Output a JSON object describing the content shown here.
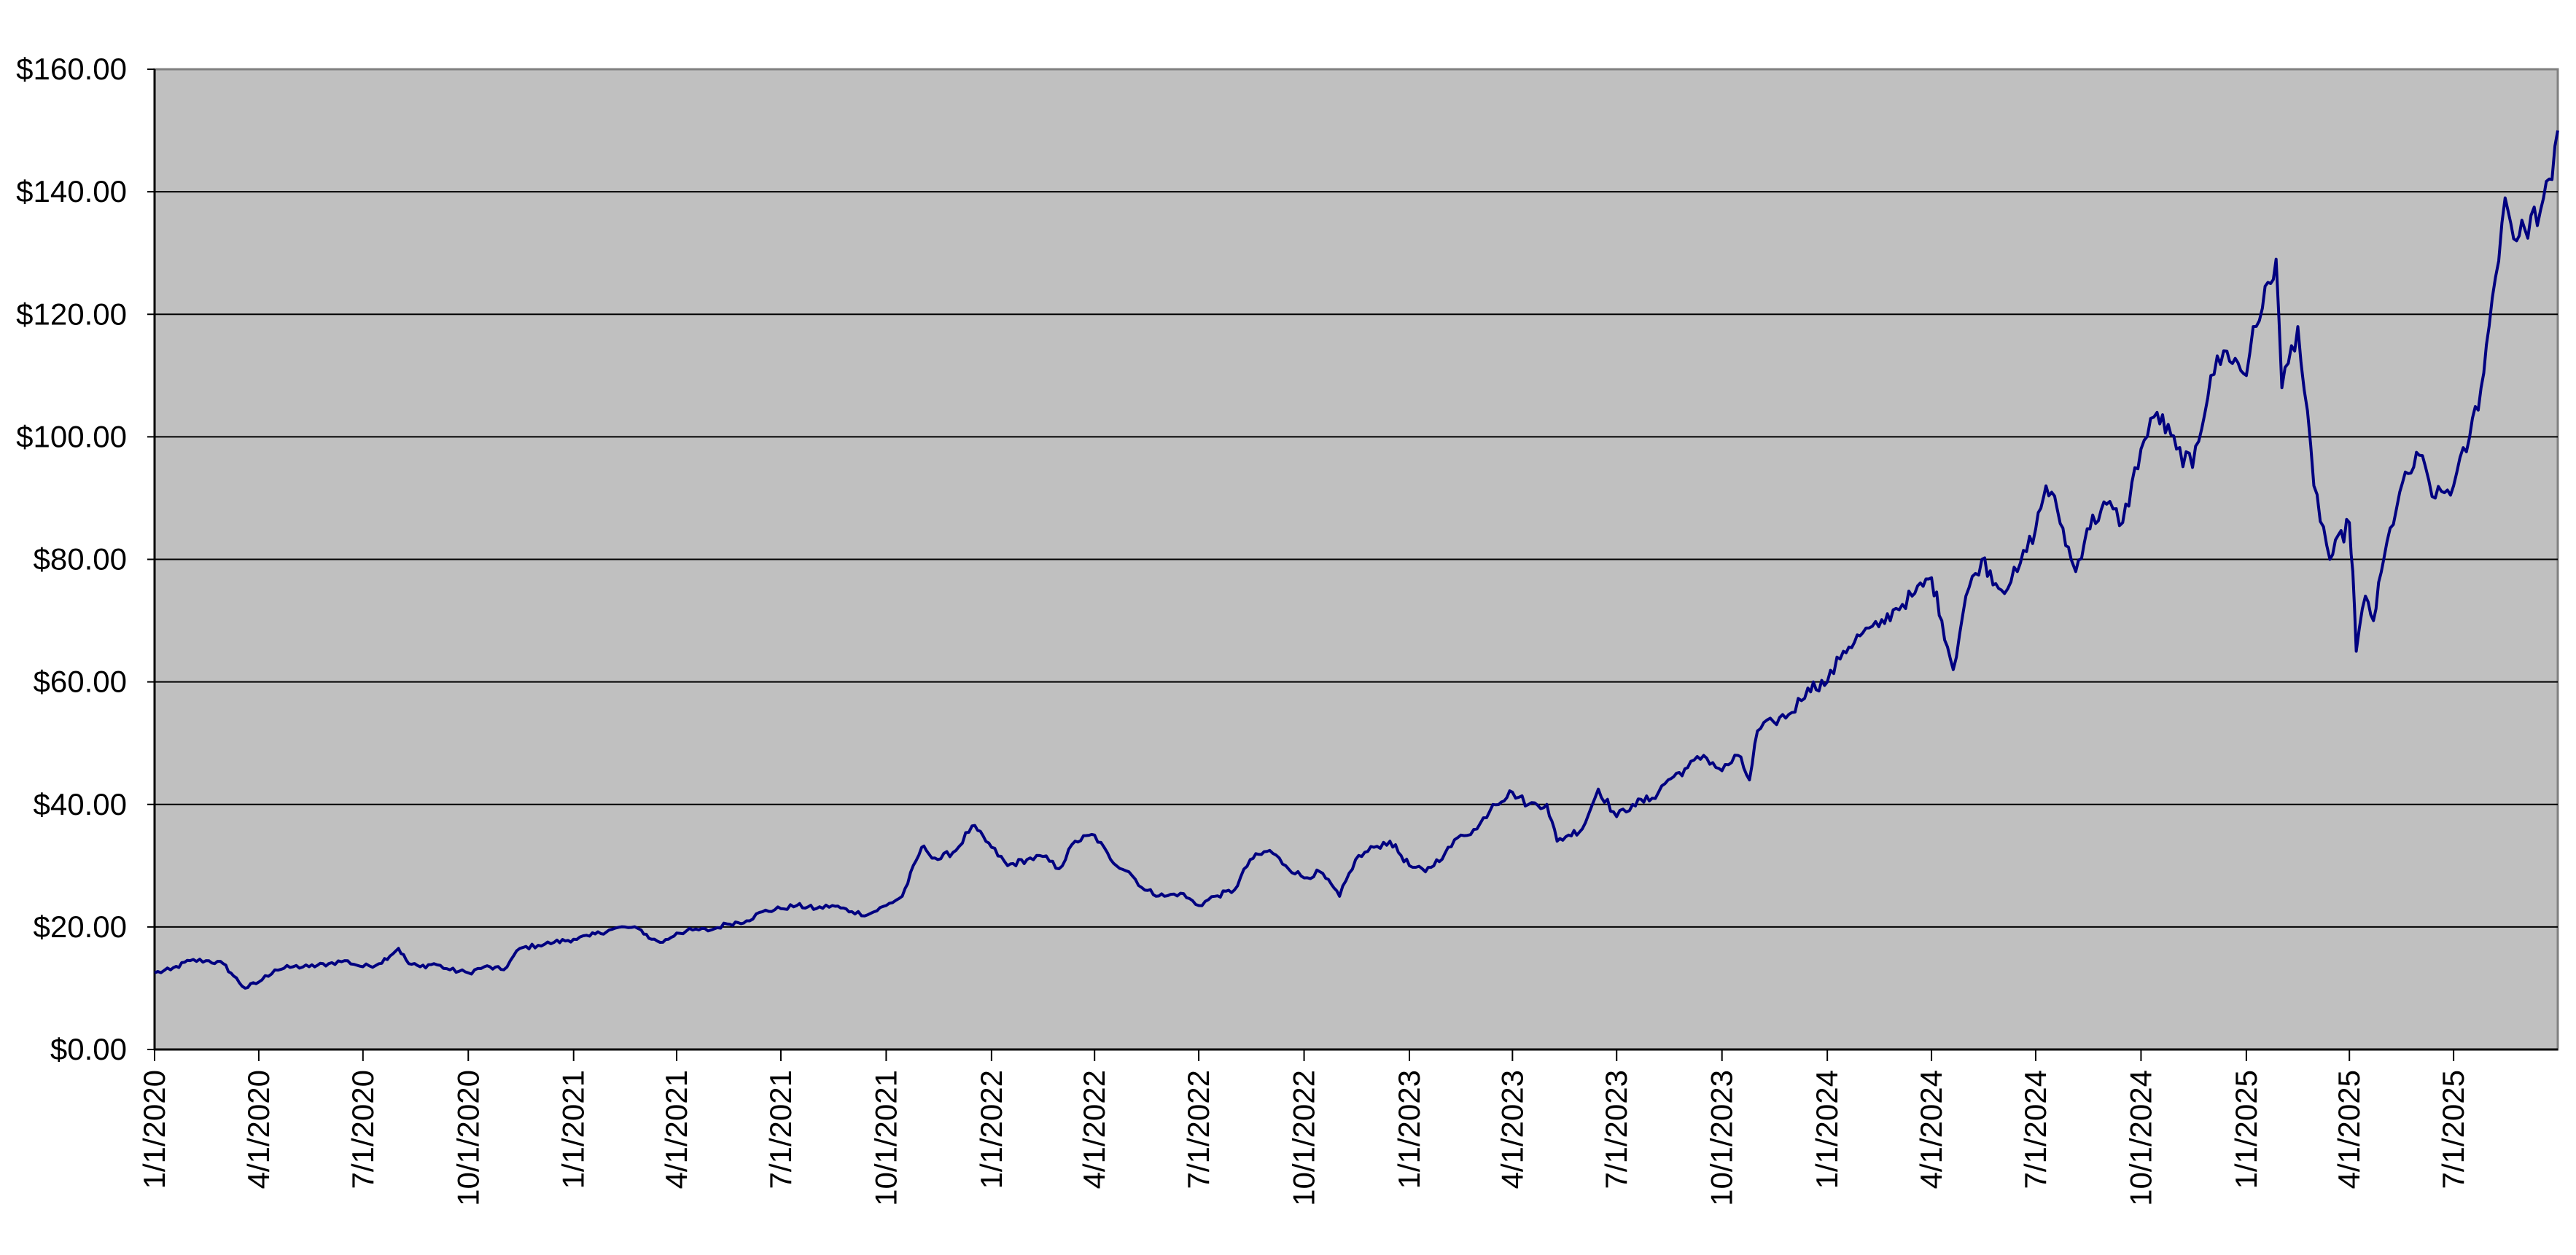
{
  "chart_data": {
    "type": "line",
    "title": "",
    "xlabel": "",
    "ylabel": "",
    "ylim": [
      0,
      160
    ],
    "xlim": [
      "2020-01-01",
      "2025-09-30"
    ],
    "grid": true,
    "legend": "none",
    "colors": {
      "plot_background": "#c0c0c0",
      "line": "#000080",
      "gridline": "#000000",
      "page_background": "#ffffff"
    },
    "y_ticks": [
      {
        "value": 0,
        "label": "$0.00"
      },
      {
        "value": 20,
        "label": "$20.00"
      },
      {
        "value": 40,
        "label": "$40.00"
      },
      {
        "value": 60,
        "label": "$60.00"
      },
      {
        "value": 80,
        "label": "$80.00"
      },
      {
        "value": 100,
        "label": "$100.00"
      },
      {
        "value": 120,
        "label": "$120.00"
      },
      {
        "value": 140,
        "label": "$140.00"
      },
      {
        "value": 160,
        "label": "$160.00"
      }
    ],
    "x_ticks": [
      {
        "value": "2020-01-01",
        "label": "1/1/2020"
      },
      {
        "value": "2020-04-01",
        "label": "4/1/2020"
      },
      {
        "value": "2020-07-01",
        "label": "7/1/2020"
      },
      {
        "value": "2020-10-01",
        "label": "10/1/2020"
      },
      {
        "value": "2021-01-01",
        "label": "1/1/2021"
      },
      {
        "value": "2021-04-01",
        "label": "4/1/2021"
      },
      {
        "value": "2021-07-01",
        "label": "7/1/2021"
      },
      {
        "value": "2021-10-01",
        "label": "10/1/2021"
      },
      {
        "value": "2022-01-01",
        "label": "1/1/2022"
      },
      {
        "value": "2022-04-01",
        "label": "4/1/2022"
      },
      {
        "value": "2022-07-01",
        "label": "7/1/2022"
      },
      {
        "value": "2022-10-01",
        "label": "10/1/2022"
      },
      {
        "value": "2023-01-01",
        "label": "1/1/2023"
      },
      {
        "value": "2023-04-01",
        "label": "4/1/2023"
      },
      {
        "value": "2023-07-01",
        "label": "7/1/2023"
      },
      {
        "value": "2023-10-01",
        "label": "10/1/2023"
      },
      {
        "value": "2024-01-01",
        "label": "1/1/2024"
      },
      {
        "value": "2024-04-01",
        "label": "4/1/2024"
      },
      {
        "value": "2024-07-01",
        "label": "7/1/2024"
      },
      {
        "value": "2024-10-01",
        "label": "10/1/2024"
      },
      {
        "value": "2025-01-01",
        "label": "1/1/2025"
      },
      {
        "value": "2025-04-01",
        "label": "4/1/2025"
      },
      {
        "value": "2025-07-01",
        "label": "7/1/2025"
      }
    ],
    "series": [
      {
        "x": [
          "2020-01-01",
          "2020-01-15",
          "2020-02-01",
          "2020-02-15",
          "2020-03-01",
          "2020-03-10",
          "2020-03-20",
          "2020-04-01",
          "2020-04-15",
          "2020-05-01",
          "2020-05-15",
          "2020-06-01",
          "2020-06-15",
          "2020-07-01",
          "2020-07-15",
          "2020-08-01",
          "2020-08-10",
          "2020-08-20",
          "2020-09-01",
          "2020-09-15",
          "2020-10-01",
          "2020-10-15",
          "2020-11-01",
          "2020-11-15",
          "2020-12-01",
          "2020-12-15",
          "2021-01-01",
          "2021-01-15",
          "2021-02-01",
          "2021-02-15",
          "2021-03-01",
          "2021-03-10",
          "2021-03-20",
          "2021-04-01",
          "2021-04-15",
          "2021-05-01",
          "2021-05-15",
          "2021-06-01",
          "2021-06-15",
          "2021-07-01",
          "2021-07-15",
          "2021-08-01",
          "2021-08-15",
          "2021-09-01",
          "2021-09-15",
          "2021-10-01",
          "2021-10-15",
          "2021-11-01",
          "2021-11-05",
          "2021-11-15",
          "2021-12-01",
          "2021-12-15",
          "2022-01-01",
          "2022-01-15",
          "2022-02-01",
          "2022-02-15",
          "2022-03-01",
          "2022-03-15",
          "2022-04-01",
          "2022-04-15",
          "2022-05-01",
          "2022-05-15",
          "2022-06-01",
          "2022-06-15",
          "2022-07-01",
          "2022-07-15",
          "2022-08-01",
          "2022-08-15",
          "2022-09-01",
          "2022-09-15",
          "2022-10-01",
          "2022-10-15",
          "2022-11-01",
          "2022-11-15",
          "2022-12-01",
          "2022-12-15",
          "2023-01-01",
          "2023-01-15",
          "2023-02-01",
          "2023-02-15",
          "2023-03-01",
          "2023-03-15",
          "2023-04-01",
          "2023-04-15",
          "2023-05-01",
          "2023-05-10",
          "2023-05-20",
          "2023-06-01",
          "2023-06-15",
          "2023-07-01",
          "2023-07-15",
          "2023-08-01",
          "2023-08-15",
          "2023-09-01",
          "2023-09-15",
          "2023-10-01",
          "2023-10-15",
          "2023-10-25",
          "2023-11-01",
          "2023-11-15",
          "2023-12-01",
          "2023-12-15",
          "2024-01-01",
          "2024-01-15",
          "2024-02-01",
          "2024-02-15",
          "2024-03-01",
          "2024-03-15",
          "2024-04-01",
          "2024-04-10",
          "2024-04-20",
          "2024-05-01",
          "2024-05-15",
          "2024-06-01",
          "2024-06-15",
          "2024-07-01",
          "2024-07-10",
          "2024-07-20",
          "2024-08-01",
          "2024-08-05",
          "2024-08-15",
          "2024-09-01",
          "2024-09-15",
          "2024-10-01",
          "2024-10-15",
          "2024-11-01",
          "2024-11-15",
          "2024-12-01",
          "2024-12-15",
          "2025-01-01",
          "2025-01-07",
          "2025-01-15",
          "2025-01-27",
          "2025-02-01",
          "2025-02-15",
          "2025-03-01",
          "2025-03-15",
          "2025-04-01",
          "2025-04-04",
          "2025-04-07",
          "2025-04-15",
          "2025-04-22",
          "2025-05-01",
          "2025-05-15",
          "2025-06-01",
          "2025-06-15",
          "2025-07-01",
          "2025-07-15",
          "2025-07-25",
          "2025-08-01",
          "2025-08-15",
          "2025-08-25",
          "2025-09-01",
          "2025-09-15",
          "2025-09-25",
          "2025-09-30"
        ],
        "y": [
          12.5,
          13.0,
          14.5,
          14.5,
          14.0,
          12.0,
          10.0,
          11.0,
          13.0,
          13.5,
          13.5,
          14.0,
          14.5,
          13.5,
          14.0,
          16.5,
          14.0,
          13.5,
          14.0,
          13.0,
          12.5,
          13.5,
          13.0,
          16.5,
          17.0,
          17.5,
          18.0,
          18.5,
          19.5,
          20.0,
          19.5,
          18.0,
          17.5,
          19.0,
          19.5,
          19.5,
          20.5,
          21.0,
          22.5,
          23.0,
          23.5,
          23.0,
          23.5,
          22.5,
          22.0,
          23.5,
          25.0,
          33.0,
          32.5,
          31.0,
          32.5,
          36.5,
          33.0,
          30.0,
          31.0,
          31.5,
          29.5,
          34.0,
          35.0,
          31.0,
          29.0,
          26.0,
          25.0,
          25.5,
          23.5,
          25.0,
          26.0,
          31.0,
          32.5,
          30.0,
          28.0,
          29.0,
          25.0,
          31.0,
          33.0,
          34.0,
          30.0,
          29.0,
          32.0,
          35.0,
          36.0,
          40.0,
          42.0,
          40.0,
          40.0,
          34.0,
          35.0,
          36.0,
          42.5,
          38.0,
          40.0,
          41.0,
          44.0,
          46.0,
          48.0,
          45.5,
          48.0,
          44.0,
          52.0,
          53.5,
          55.0,
          59.0,
          60.0,
          65.0,
          68.0,
          69.0,
          72.0,
          74.0,
          77.0,
          70.0,
          62.0,
          74.0,
          80.0,
          75.0,
          78.0,
          85.0,
          92.0,
          88.0,
          80.0,
          78.0,
          85.0,
          89.0,
          86.0,
          98.0,
          104.0,
          98.0,
          95.0,
          110.0,
          114.0,
          110.0,
          118.0,
          121.0,
          129.0,
          108.0,
          118.0,
          92.0,
          80.0,
          86.0,
          78.0,
          65.0,
          74.0,
          70.0,
          80.0,
          91.0,
          97.0,
          90.0,
          92.0,
          100.0,
          108.0,
          118.0,
          139.0,
          132.0,
          134.0,
          137.0,
          142.0,
          150.0
        ]
      }
    ]
  }
}
